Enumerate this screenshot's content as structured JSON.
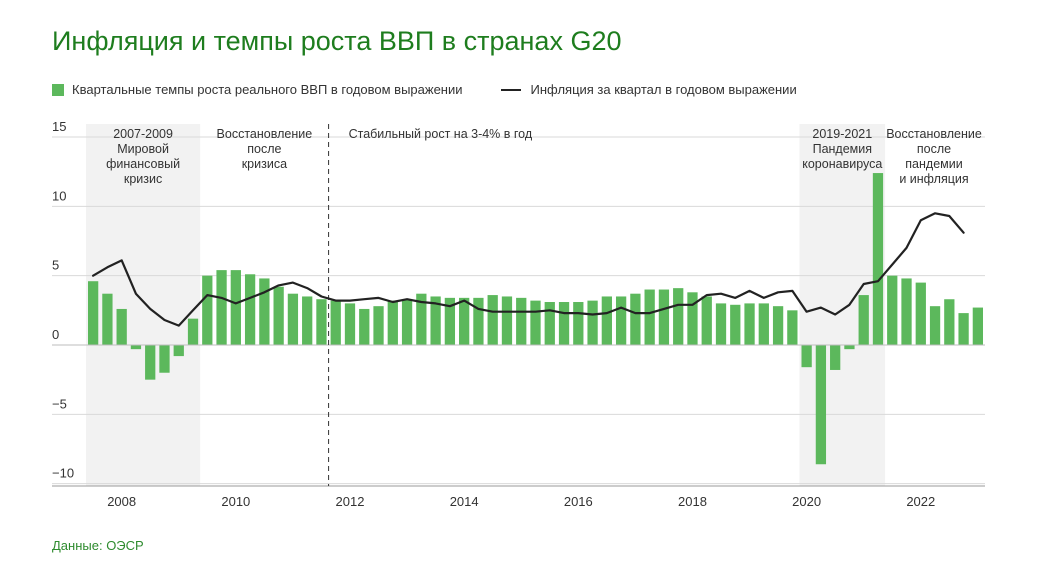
{
  "title": "Инфляция и темпы роста ВВП в странах G20",
  "source": "Данные: ОЭСР",
  "legend": {
    "gdp": "Квартальные темпы роста реального ВВП в годовом выражении",
    "inflation": "Инфляция за квартал в годовом выражении"
  },
  "colors": {
    "bar": "#5cb85c",
    "line": "#222222",
    "shade": "#f2f2f2",
    "title": "#1e7d1e"
  },
  "chart_data": {
    "type": "bar",
    "y_ticks": [
      "15",
      "10",
      "5",
      "0",
      "−5",
      "−10"
    ],
    "y_tick_values": [
      15,
      10,
      5,
      0,
      -5,
      -10
    ],
    "x_ticks": [
      "2008",
      "2010",
      "2012",
      "2014",
      "2016",
      "2018",
      "2020",
      "2022"
    ],
    "ylim": [
      -10,
      15
    ],
    "first_quarter": "2007 Q4",
    "grid": true,
    "series": [
      {
        "name": "Квартальные темпы роста реального ВВП в годовом выражении",
        "type": "bar",
        "values": [
          4.6,
          3.7,
          2.6,
          -0.3,
          -2.5,
          -2.0,
          -0.8,
          1.9,
          5.0,
          5.4,
          5.4,
          5.1,
          4.8,
          4.2,
          3.7,
          3.5,
          3.3,
          3.2,
          3.0,
          2.6,
          2.8,
          3.2,
          3.3,
          3.7,
          3.5,
          3.4,
          3.4,
          3.4,
          3.6,
          3.5,
          3.4,
          3.2,
          3.1,
          3.1,
          3.1,
          3.2,
          3.5,
          3.5,
          3.7,
          4.0,
          4.0,
          4.1,
          3.8,
          3.5,
          3.0,
          2.9,
          3.0,
          3.0,
          2.8,
          2.5,
          -1.6,
          -8.6,
          -1.8,
          -0.3,
          3.6,
          12.4,
          5.0,
          4.8,
          4.5,
          2.8,
          3.3,
          2.3,
          2.7
        ]
      },
      {
        "name": "Инфляция за квартал в годовом выражении",
        "type": "line",
        "values": [
          5.0,
          5.6,
          6.1,
          3.7,
          2.6,
          1.8,
          1.4,
          2.5,
          3.6,
          3.4,
          3.0,
          3.4,
          3.8,
          4.3,
          4.5,
          4.1,
          3.5,
          3.2,
          3.2,
          3.3,
          3.4,
          3.1,
          3.3,
          3.1,
          3.0,
          2.8,
          3.2,
          2.6,
          2.4,
          2.4,
          2.4,
          2.4,
          2.5,
          2.3,
          2.3,
          2.2,
          2.3,
          2.7,
          2.3,
          2.3,
          2.6,
          2.9,
          2.9,
          3.6,
          3.7,
          3.4,
          3.9,
          3.4,
          3.8,
          3.9,
          2.4,
          2.7,
          2.2,
          2.9,
          4.4,
          4.6,
          5.8,
          7.0,
          9.0,
          9.5,
          9.3,
          8.1
        ]
      }
    ],
    "periods": [
      {
        "id": "crisis",
        "shaded": true,
        "start": 0,
        "end": 8,
        "lines": [
          "2007-2009",
          "Мировой",
          "финансовый",
          "кризис"
        ]
      },
      {
        "id": "recovery1",
        "shaded": false,
        "start": 8,
        "end": 17,
        "lines": [
          "Восстановление",
          "после",
          "кризиса"
        ]
      },
      {
        "id": "stable",
        "shaded": false,
        "start": 17,
        "end": 50,
        "lines": [
          "Стабильный рост на 3-4% в год"
        ]
      },
      {
        "id": "pandemic",
        "shaded": true,
        "start": 50,
        "end": 56,
        "lines": [
          "2019-2021",
          "Пандемия",
          "коронавируса"
        ]
      },
      {
        "id": "recovery2",
        "shaded": false,
        "start": 56,
        "end": 63,
        "lines": [
          "Восстановление",
          "после",
          "пандемии",
          "и инфляция"
        ]
      }
    ]
  }
}
